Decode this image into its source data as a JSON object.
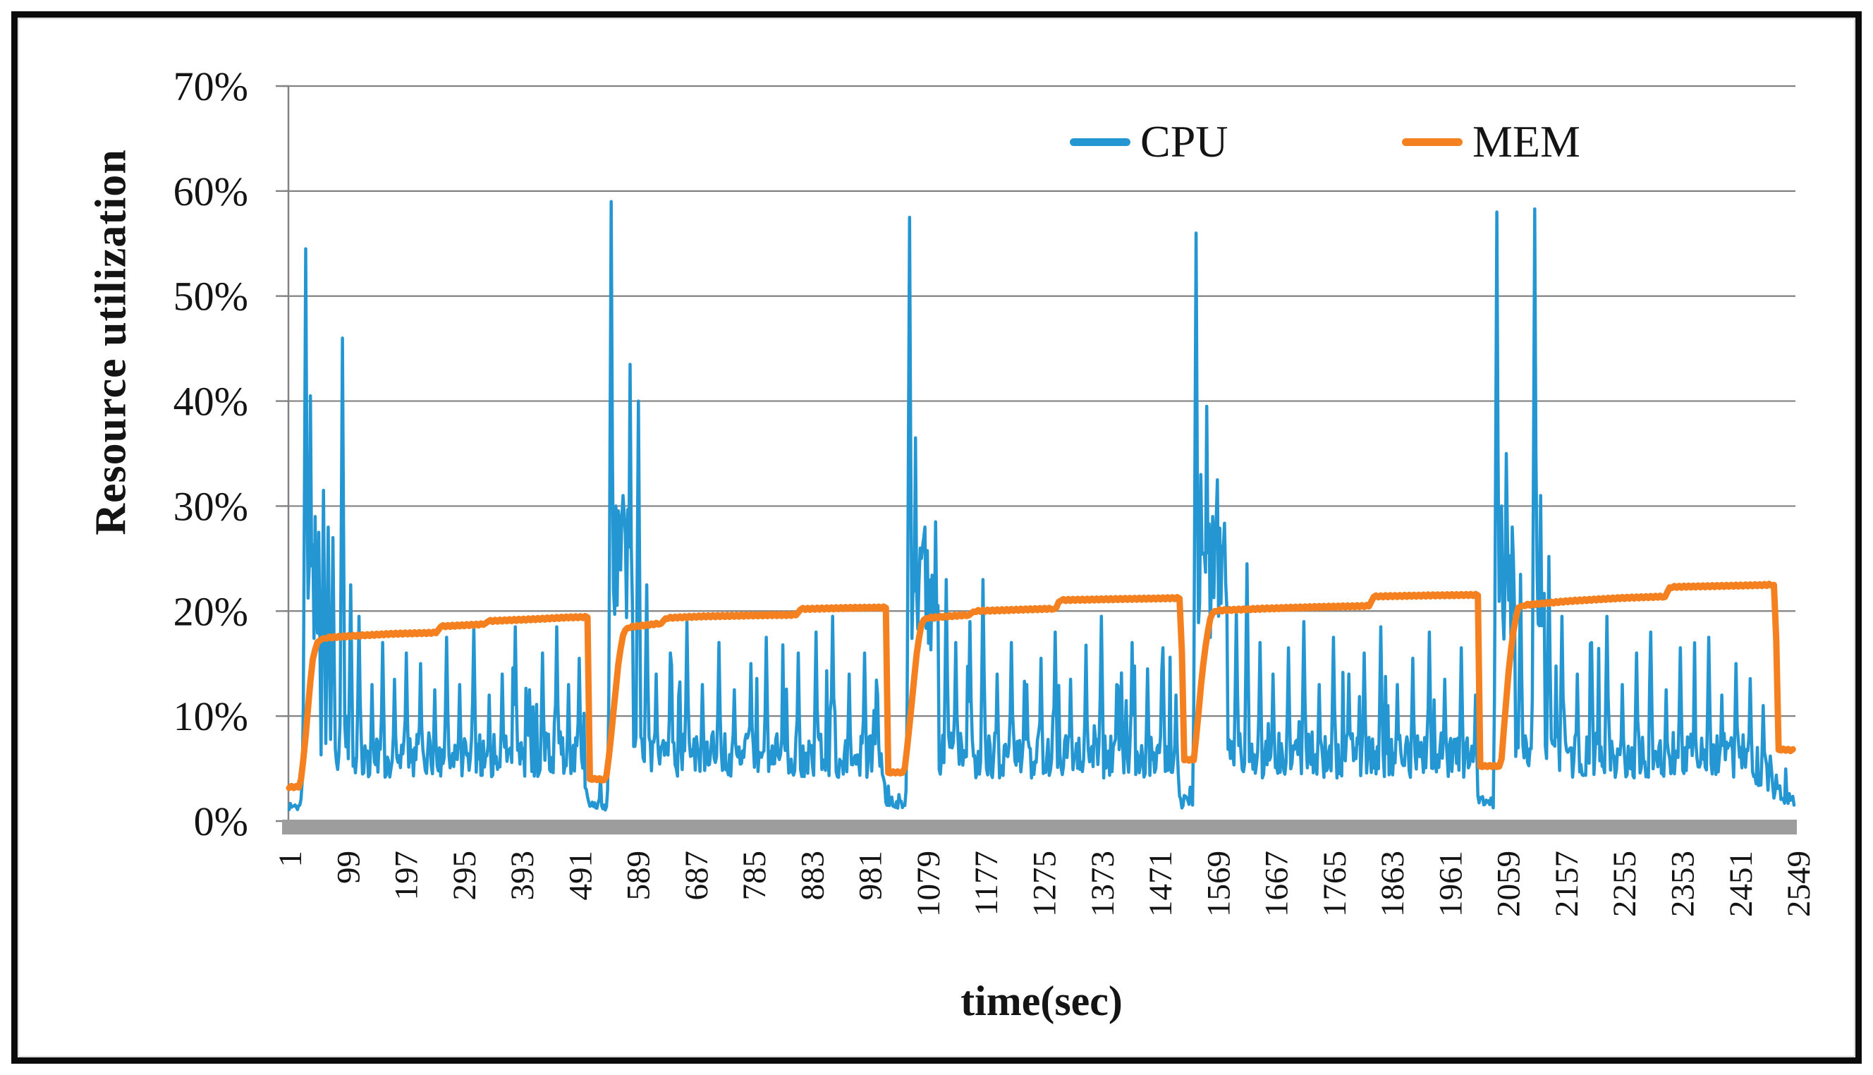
{
  "figure": {
    "background": "#ffffff",
    "border_color": "#0b0b0b"
  },
  "chart_data": {
    "type": "line",
    "title": "",
    "ylabel": "Resource utilization",
    "xlabel": "time(sec)",
    "ylim": [
      0,
      70
    ],
    "xlim": [
      1,
      2543
    ],
    "grid": true,
    "legend_position": "top-right-inside",
    "y_ticks": [
      {
        "value": 0,
        "label": "0%"
      },
      {
        "value": 10,
        "label": "10%"
      },
      {
        "value": 20,
        "label": "20%"
      },
      {
        "value": 30,
        "label": "30%"
      },
      {
        "value": 40,
        "label": "40%"
      },
      {
        "value": 50,
        "label": "50%"
      },
      {
        "value": 60,
        "label": "60%"
      },
      {
        "value": 70,
        "label": "70%"
      }
    ],
    "x_ticks": [
      1,
      99,
      197,
      295,
      393,
      491,
      589,
      687,
      785,
      883,
      981,
      1079,
      1177,
      1275,
      1373,
      1471,
      1569,
      1667,
      1765,
      1863,
      1961,
      2059,
      2157,
      2255,
      2353,
      2451,
      2549
    ],
    "legend": [
      {
        "label": "CPU",
        "color": "#2496d2"
      },
      {
        "label": "MEM",
        "color": "#f5801f"
      }
    ],
    "colors": {
      "grid": "#828282",
      "axis_line": "#828282",
      "axis_zero_bar": "#9d9d9d",
      "text": "#141414"
    },
    "series": [
      {
        "name": "CPU",
        "color": "#2496d2",
        "width": 4.5,
        "render": "generated",
        "seed": 1337,
        "step": 2,
        "baseline": {
          "mean": 6.3,
          "jitter": 2.2,
          "spike_prob": 0.06,
          "spike_min": 9,
          "spike_max": 17
        },
        "envelope": [
          [
            1,
            0.22
          ],
          [
            19,
            0.22
          ],
          [
            27,
            1
          ],
          [
            495,
            1
          ],
          [
            505,
            0.3
          ],
          [
            537,
            0.25
          ],
          [
            543,
            1
          ],
          [
            999,
            1
          ],
          [
            1009,
            0.28
          ],
          [
            1041,
            0.25
          ],
          [
            1047,
            1
          ],
          [
            1497,
            1
          ],
          [
            1507,
            0.3
          ],
          [
            1527,
            0.28
          ],
          [
            1533,
            1
          ],
          [
            2001,
            1
          ],
          [
            2009,
            0.28
          ],
          [
            2035,
            0.28
          ],
          [
            2041,
            1
          ],
          [
            2459,
            1
          ],
          [
            2495,
            0.72
          ],
          [
            2515,
            0.45
          ],
          [
            2543,
            0.3
          ]
        ],
        "blocks": [
          [
            31,
            53,
            16,
            28
          ],
          [
            549,
            581,
            18,
            30
          ],
          [
            1053,
            1097,
            16,
            27
          ],
          [
            1537,
            1585,
            17,
            29
          ],
          [
            2043,
            2071,
            15,
            27
          ],
          [
            2107,
            2121,
            13,
            24
          ]
        ],
        "peaks": [
          [
            29,
            54.5
          ],
          [
            37,
            40.5
          ],
          [
            45,
            29
          ],
          [
            51,
            27.5
          ],
          [
            59,
            31.5
          ],
          [
            67,
            28
          ],
          [
            75,
            27
          ],
          [
            91,
            46
          ],
          [
            105,
            22.5
          ],
          [
            119,
            19.5
          ],
          [
            141,
            13
          ],
          [
            159,
            17
          ],
          [
            179,
            13.5
          ],
          [
            199,
            16
          ],
          [
            223,
            15
          ],
          [
            247,
            12.5
          ],
          [
            267,
            17.5
          ],
          [
            289,
            13
          ],
          [
            313,
            18.5
          ],
          [
            339,
            12
          ],
          [
            361,
            14
          ],
          [
            383,
            18.5
          ],
          [
            407,
            12.5
          ],
          [
            429,
            16
          ],
          [
            453,
            18.5
          ],
          [
            473,
            13
          ],
          [
            491,
            15.5
          ],
          [
            545,
            59
          ],
          [
            553,
            30
          ],
          [
            559,
            28.5
          ],
          [
            565,
            31
          ],
          [
            577,
            43.5
          ],
          [
            591,
            40
          ],
          [
            605,
            22.5
          ],
          [
            621,
            14
          ],
          [
            645,
            16
          ],
          [
            673,
            19
          ],
          [
            699,
            13
          ],
          [
            727,
            17
          ],
          [
            753,
            12.5
          ],
          [
            781,
            15
          ],
          [
            807,
            17.5
          ],
          [
            835,
            13
          ],
          [
            861,
            16
          ],
          [
            891,
            18
          ],
          [
            919,
            19.5
          ],
          [
            947,
            14
          ],
          [
            973,
            16
          ],
          [
            995,
            12
          ],
          [
            1049,
            57.5
          ],
          [
            1059,
            36.5
          ],
          [
            1067,
            26
          ],
          [
            1075,
            28
          ],
          [
            1093,
            28.5
          ],
          [
            1111,
            23
          ],
          [
            1127,
            17
          ],
          [
            1151,
            19
          ],
          [
            1173,
            23
          ],
          [
            1197,
            14
          ],
          [
            1221,
            17
          ],
          [
            1247,
            13
          ],
          [
            1271,
            15.5
          ],
          [
            1295,
            18
          ],
          [
            1321,
            13.5
          ],
          [
            1347,
            16
          ],
          [
            1373,
            19.5
          ],
          [
            1399,
            13
          ],
          [
            1425,
            17
          ],
          [
            1451,
            14.5
          ],
          [
            1477,
            16.5
          ],
          [
            1499,
            12
          ],
          [
            1533,
            56
          ],
          [
            1541,
            33
          ],
          [
            1551,
            39.5
          ],
          [
            1561,
            29
          ],
          [
            1569,
            32.5
          ],
          [
            1581,
            26
          ],
          [
            1601,
            20
          ],
          [
            1619,
            24.5
          ],
          [
            1641,
            17
          ],
          [
            1663,
            14
          ],
          [
            1689,
            16.5
          ],
          [
            1715,
            19
          ],
          [
            1741,
            13
          ],
          [
            1765,
            17.5
          ],
          [
            1791,
            14
          ],
          [
            1817,
            16
          ],
          [
            1845,
            18.5
          ],
          [
            1873,
            13
          ],
          [
            1899,
            15.5
          ],
          [
            1927,
            18
          ],
          [
            1953,
            13.5
          ],
          [
            1981,
            16.5
          ],
          [
            2005,
            12
          ],
          [
            2041,
            58
          ],
          [
            2049,
            30
          ],
          [
            2057,
            35
          ],
          [
            2067,
            28
          ],
          [
            2081,
            23.5
          ],
          [
            2105,
            58.3
          ],
          [
            2115,
            31
          ],
          [
            2129,
            25.2
          ],
          [
            2151,
            19.5
          ],
          [
            2177,
            14
          ],
          [
            2201,
            17
          ],
          [
            2227,
            19.5
          ],
          [
            2253,
            13
          ],
          [
            2277,
            16
          ],
          [
            2301,
            18
          ],
          [
            2327,
            12.5
          ],
          [
            2351,
            16.5
          ],
          [
            2375,
            13
          ],
          [
            2399,
            17.5
          ],
          [
            2421,
            12
          ],
          [
            2445,
            15
          ],
          [
            2469,
            13.5
          ],
          [
            2491,
            11
          ]
        ]
      },
      {
        "name": "MEM",
        "color": "#f5801f",
        "width": 9,
        "render": "points",
        "points": [
          [
            1,
            3.2
          ],
          [
            18,
            3.2
          ],
          [
            22,
            4.2
          ],
          [
            28,
            7.5
          ],
          [
            34,
            11.5
          ],
          [
            40,
            15.2
          ],
          [
            48,
            17.0
          ],
          [
            58,
            17.4
          ],
          [
            110,
            17.6
          ],
          [
            180,
            17.8
          ],
          [
            250,
            17.9
          ],
          [
            256,
            18.5
          ],
          [
            330,
            18.7
          ],
          [
            336,
            19.0
          ],
          [
            420,
            19.2
          ],
          [
            470,
            19.35
          ],
          [
            506,
            19.4
          ],
          [
            509,
            4.0
          ],
          [
            536,
            3.9
          ],
          [
            542,
            6.5
          ],
          [
            550,
            11
          ],
          [
            558,
            15.5
          ],
          [
            566,
            18.0
          ],
          [
            572,
            18.4
          ],
          [
            630,
            18.8
          ],
          [
            636,
            19.3
          ],
          [
            700,
            19.45
          ],
          [
            790,
            19.55
          ],
          [
            858,
            19.6
          ],
          [
            864,
            20.15
          ],
          [
            940,
            20.25
          ],
          [
            1010,
            20.3
          ],
          [
            1013,
            4.6
          ],
          [
            1040,
            4.6
          ],
          [
            1046,
            7.5
          ],
          [
            1054,
            12
          ],
          [
            1062,
            16.5
          ],
          [
            1070,
            19.0
          ],
          [
            1076,
            19.3
          ],
          [
            1150,
            19.6
          ],
          [
            1156,
            19.95
          ],
          [
            1240,
            20.1
          ],
          [
            1296,
            20.2
          ],
          [
            1302,
            21.0
          ],
          [
            1400,
            21.1
          ],
          [
            1460,
            21.15
          ],
          [
            1508,
            21.2
          ],
          [
            1511,
            5.8
          ],
          [
            1529,
            5.8
          ],
          [
            1535,
            9
          ],
          [
            1543,
            14
          ],
          [
            1551,
            17.5
          ],
          [
            1558,
            19.6
          ],
          [
            1564,
            20.0
          ],
          [
            1650,
            20.2
          ],
          [
            1740,
            20.35
          ],
          [
            1826,
            20.45
          ],
          [
            1832,
            21.35
          ],
          [
            1930,
            21.45
          ],
          [
            2010,
            21.5
          ],
          [
            2013,
            5.2
          ],
          [
            2048,
            5.2
          ],
          [
            2054,
            9.5
          ],
          [
            2062,
            15
          ],
          [
            2070,
            18.5
          ],
          [
            2077,
            20.3
          ],
          [
            2083,
            20.5
          ],
          [
            2160,
            20.9
          ],
          [
            2250,
            21.2
          ],
          [
            2326,
            21.35
          ],
          [
            2332,
            22.25
          ],
          [
            2420,
            22.35
          ],
          [
            2500,
            22.45
          ],
          [
            2512,
            22.5
          ],
          [
            2515,
            6.8
          ],
          [
            2543,
            6.7
          ]
        ]
      }
    ]
  }
}
